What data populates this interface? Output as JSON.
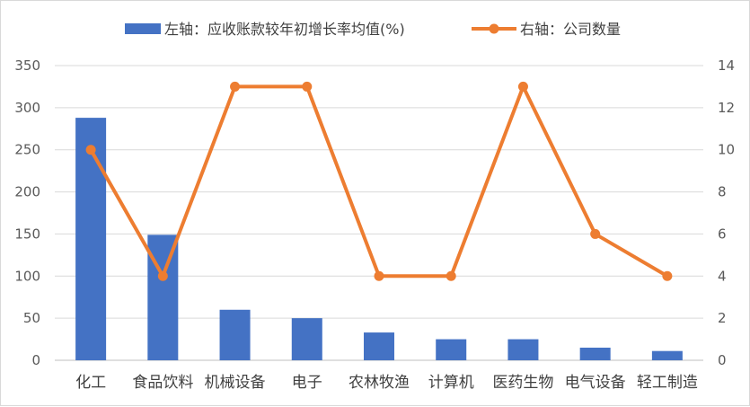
{
  "chart_data": {
    "type": "bar+line",
    "categories": [
      "化工",
      "食品饮料",
      "机械设备",
      "电子",
      "农林牧渔",
      "计算机",
      "医药生物",
      "电气设备",
      "轻工制造"
    ],
    "series": [
      {
        "name": "左轴：应收账款较年初增长率均值(%)",
        "type": "bar",
        "axis": "left",
        "color": "#4472c4",
        "values": [
          288,
          149,
          60,
          50,
          33,
          25,
          25,
          15,
          11
        ]
      },
      {
        "name": "右轴：公司数量",
        "type": "line",
        "axis": "right",
        "color": "#ed7d31",
        "values": [
          10,
          4,
          13,
          13,
          4,
          4,
          13,
          6,
          4
        ]
      }
    ],
    "y_left": {
      "min": 0,
      "max": 350,
      "step": 50,
      "ticks": [
        "0",
        "50",
        "100",
        "150",
        "200",
        "250",
        "300",
        "350"
      ]
    },
    "y_right": {
      "min": 0,
      "max": 14,
      "step": 2,
      "ticks": [
        "0",
        "2",
        "4",
        "6",
        "8",
        "10",
        "12",
        "14"
      ]
    },
    "grid": true,
    "legend_position": "top-center"
  }
}
